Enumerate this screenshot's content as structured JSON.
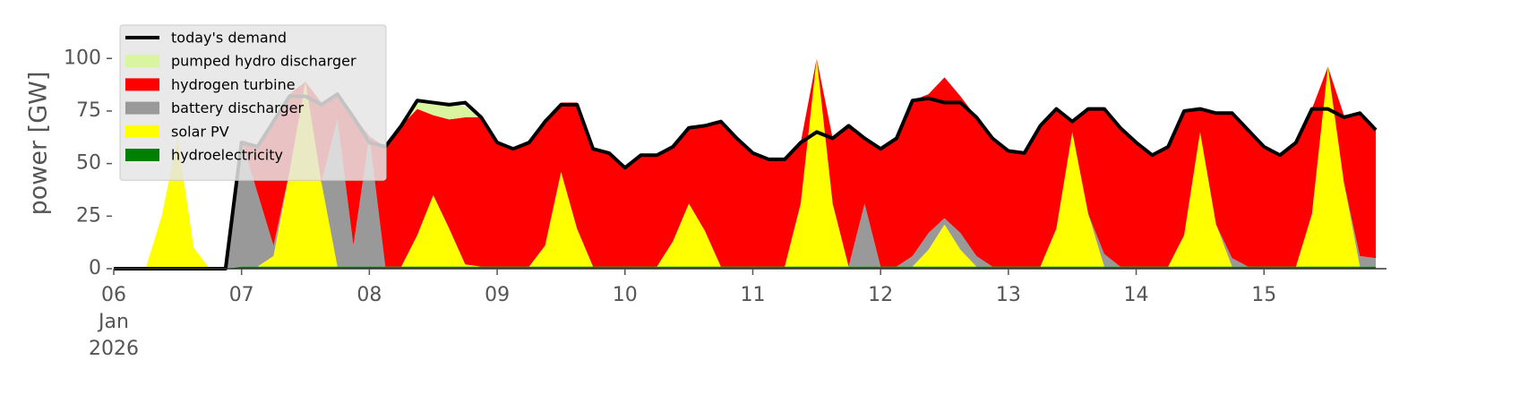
{
  "chart_data": {
    "type": "stacked-area",
    "ylabel": "power [GW]",
    "x": [
      "2026-01-06T00:00",
      "2026-01-06T03:00",
      "2026-01-06T06:00",
      "2026-01-06T09:00",
      "2026-01-06T12:00",
      "2026-01-06T15:00",
      "2026-01-06T18:00",
      "2026-01-06T21:00",
      "2026-01-07T00:00",
      "2026-01-07T03:00",
      "2026-01-07T06:00",
      "2026-01-07T09:00",
      "2026-01-07T12:00",
      "2026-01-07T15:00",
      "2026-01-07T18:00",
      "2026-01-07T21:00",
      "2026-01-08T00:00",
      "2026-01-08T03:00",
      "2026-01-08T06:00",
      "2026-01-08T09:00",
      "2026-01-08T12:00",
      "2026-01-08T15:00",
      "2026-01-08T18:00",
      "2026-01-08T21:00",
      "2026-01-09T00:00",
      "2026-01-09T03:00",
      "2026-01-09T06:00",
      "2026-01-09T09:00",
      "2026-01-09T12:00",
      "2026-01-09T15:00",
      "2026-01-09T18:00",
      "2026-01-09T21:00",
      "2026-01-10T00:00",
      "2026-01-10T03:00",
      "2026-01-10T06:00",
      "2026-01-10T09:00",
      "2026-01-10T12:00",
      "2026-01-10T15:00",
      "2026-01-10T18:00",
      "2026-01-10T21:00",
      "2026-01-11T00:00",
      "2026-01-11T03:00",
      "2026-01-11T06:00",
      "2026-01-11T09:00",
      "2026-01-11T12:00",
      "2026-01-11T15:00",
      "2026-01-11T18:00",
      "2026-01-11T21:00",
      "2026-01-12T00:00",
      "2026-01-12T03:00",
      "2026-01-12T06:00",
      "2026-01-12T09:00",
      "2026-01-12T12:00",
      "2026-01-12T15:00",
      "2026-01-12T18:00",
      "2026-01-12T21:00",
      "2026-01-13T00:00",
      "2026-01-13T03:00",
      "2026-01-13T06:00",
      "2026-01-13T09:00",
      "2026-01-13T12:00",
      "2026-01-13T15:00",
      "2026-01-13T18:00",
      "2026-01-13T21:00",
      "2026-01-14T00:00",
      "2026-01-14T03:00",
      "2026-01-14T06:00",
      "2026-01-14T09:00",
      "2026-01-14T12:00",
      "2026-01-14T15:00",
      "2026-01-14T18:00",
      "2026-01-14T21:00",
      "2026-01-15T00:00",
      "2026-01-15T03:00",
      "2026-01-15T06:00",
      "2026-01-15T09:00",
      "2026-01-15T12:00",
      "2026-01-15T15:00",
      "2026-01-15T18:00",
      "2026-01-15T21:00"
    ],
    "xlim": [
      "2026-01-06T00:00",
      "2026-01-15T23:00"
    ],
    "xticks": [
      {
        "value": "2026-01-06T00:00",
        "label": "06\nJan\n2026"
      },
      {
        "value": "2026-01-07T00:00",
        "label": "07"
      },
      {
        "value": "2026-01-08T00:00",
        "label": "08"
      },
      {
        "value": "2026-01-09T00:00",
        "label": "09"
      },
      {
        "value": "2026-01-10T00:00",
        "label": "10"
      },
      {
        "value": "2026-01-11T00:00",
        "label": "11"
      },
      {
        "value": "2026-01-12T00:00",
        "label": "12"
      },
      {
        "value": "2026-01-13T00:00",
        "label": "13"
      },
      {
        "value": "2026-01-14T00:00",
        "label": "14"
      },
      {
        "value": "2026-01-15T00:00",
        "label": "15"
      }
    ],
    "ylim": [
      0,
      118
    ],
    "yticks": [
      0,
      25,
      50,
      75,
      100
    ],
    "legend": "upper left",
    "series": [
      {
        "name": "today's demand",
        "type": "line",
        "color": "#000000",
        "values": [
          0,
          0,
          0,
          0,
          0,
          0,
          0,
          0,
          60,
          58,
          70,
          82,
          82,
          78,
          83,
          72,
          60,
          58,
          68,
          80,
          79,
          78,
          79,
          72,
          60,
          57,
          60,
          70,
          78,
          78,
          57,
          55,
          48,
          54,
          54,
          58,
          67,
          68,
          70,
          62,
          55,
          52,
          52,
          60,
          65,
          62,
          68,
          62,
          57,
          62,
          80,
          81,
          79,
          79,
          72,
          62,
          56,
          55,
          68,
          76,
          70,
          76,
          76,
          67,
          60,
          54,
          58,
          75,
          76,
          74,
          74,
          66,
          58,
          54,
          60,
          76,
          76,
          72,
          74,
          66
        ]
      },
      {
        "name": "pumped hydro discharger",
        "type": "area",
        "color": "#d9f5a0",
        "values": [
          0,
          0,
          0,
          0,
          0,
          0,
          0,
          0,
          0,
          0,
          0,
          0,
          0,
          0,
          0,
          0,
          0,
          0,
          0,
          4,
          5,
          8,
          5,
          0,
          0,
          0,
          0,
          0,
          0,
          0,
          0,
          0,
          0,
          0,
          0,
          0,
          0,
          0,
          0,
          0,
          0,
          0,
          0,
          0,
          0,
          0,
          0,
          0,
          0,
          0,
          0,
          0,
          0,
          0,
          0,
          0,
          0,
          0,
          0,
          0,
          0,
          0,
          0,
          0,
          0,
          0,
          0,
          0,
          0,
          0,
          0,
          0,
          0,
          0,
          0,
          0,
          0,
          0,
          0,
          0
        ]
      },
      {
        "name": "hydrogen turbine",
        "type": "area",
        "color": "#ff0000",
        "values": [
          0,
          0,
          0,
          0,
          0,
          0,
          0,
          0,
          0,
          23,
          60,
          37,
          0,
          38,
          13,
          62,
          0,
          57,
          67,
          60,
          38,
          52,
          70,
          71,
          59,
          56,
          59,
          60,
          33,
          60,
          56,
          54,
          47,
          53,
          53,
          45,
          36,
          50,
          69,
          61,
          54,
          51,
          51,
          29,
          0,
          31,
          67,
          31,
          56,
          61,
          74,
          66,
          67,
          65,
          66,
          61,
          55,
          54,
          67,
          57,
          6,
          50,
          69,
          66,
          59,
          53,
          57,
          59,
          11,
          53,
          69,
          65,
          57,
          53,
          59,
          50,
          0,
          32,
          68,
          61
        ]
      },
      {
        "name": "battery discharger",
        "type": "area",
        "color": "#999999",
        "values": [
          0,
          0,
          0,
          0,
          0,
          0,
          0,
          0,
          60,
          35,
          5,
          0,
          0,
          0,
          70,
          10,
          62,
          0,
          0,
          0,
          0,
          0,
          0,
          0,
          0,
          0,
          0,
          0,
          0,
          0,
          0,
          0,
          0,
          0,
          0,
          0,
          0,
          0,
          0,
          0,
          0,
          0,
          0,
          0,
          0,
          0,
          0,
          30,
          0,
          0,
          5,
          8,
          3,
          8,
          5,
          0,
          0,
          0,
          0,
          0,
          0,
          0,
          6,
          0,
          0,
          0,
          0,
          0,
          0,
          0,
          4,
          0,
          0,
          0,
          0,
          0,
          0,
          0,
          5,
          4
        ]
      },
      {
        "name": "solar PV",
        "type": "area",
        "color": "#ffff00",
        "values": [
          0,
          0,
          0,
          25,
          62,
          10,
          0,
          0,
          0,
          0,
          5,
          45,
          88,
          40,
          0,
          0,
          0,
          0,
          0,
          15,
          34,
          18,
          1,
          0,
          0,
          0,
          0,
          10,
          45,
          18,
          0,
          0,
          0,
          0,
          0,
          12,
          30,
          17,
          0,
          0,
          0,
          0,
          0,
          30,
          99,
          30,
          0,
          0,
          0,
          0,
          0,
          8,
          20,
          8,
          0,
          0,
          0,
          0,
          0,
          18,
          64,
          25,
          0,
          0,
          0,
          0,
          0,
          15,
          64,
          20,
          0,
          0,
          0,
          0,
          0,
          25,
          95,
          40,
          0,
          0
        ]
      },
      {
        "name": "hydroelectricity",
        "type": "area",
        "color": "#008000",
        "values": [
          0,
          0,
          0,
          0,
          0,
          0,
          0,
          0,
          1,
          1,
          1,
          1,
          1,
          1,
          1,
          1,
          1,
          1,
          1,
          1,
          1,
          1,
          1,
          1,
          1,
          1,
          1,
          1,
          1,
          1,
          1,
          1,
          1,
          1,
          1,
          1,
          1,
          1,
          1,
          1,
          1,
          1,
          1,
          1,
          1,
          1,
          1,
          1,
          1,
          1,
          1,
          1,
          1,
          1,
          1,
          1,
          1,
          1,
          1,
          1,
          1,
          1,
          1,
          1,
          1,
          1,
          1,
          1,
          1,
          1,
          1,
          1,
          1,
          1,
          1,
          1,
          1,
          1,
          1,
          1
        ]
      }
    ]
  }
}
